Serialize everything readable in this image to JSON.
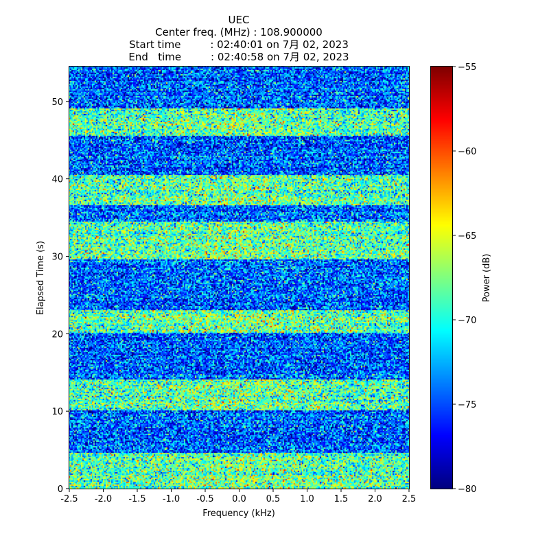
{
  "chart_data": {
    "type": "heatmap",
    "title_lines": [
      "UEC",
      "Center freq. (MHz) : 108.900000",
      "Start time         : 02:40:01 on 7月 02, 2023",
      "End   time         : 02:40:58 on 7月 02, 2023"
    ],
    "xlabel": "Frequency (kHz)",
    "ylabel": "Elapsed Time (s)",
    "xlim": [
      -2.5,
      2.5
    ],
    "ylim": [
      0,
      54.5
    ],
    "x_ticks": [
      -2.5,
      -2.0,
      -1.5,
      -1.0,
      -0.5,
      0.0,
      0.5,
      1.0,
      1.5,
      2.0,
      2.5
    ],
    "x_tick_labels": [
      "-2.5",
      "-2.0",
      "-1.5",
      "-1.0",
      "-0.5",
      "0.0",
      "0.5",
      "1.0",
      "1.5",
      "2.0",
      "2.5"
    ],
    "y_ticks": [
      0,
      10,
      20,
      30,
      40,
      50
    ],
    "y_tick_labels": [
      "0",
      "10",
      "20",
      "30",
      "40",
      "50"
    ],
    "colorbar": {
      "label": "Power (dB)",
      "range": [
        -80,
        -55
      ],
      "ticks": [
        -80,
        -75,
        -70,
        -65,
        -60,
        -55
      ],
      "tick_labels": [
        "−80",
        "−75",
        "−70",
        "−65",
        "−60",
        "−55"
      ],
      "colormap": "jet"
    },
    "bright_bands_s": [
      [
        0,
        4.5
      ],
      [
        10,
        14
      ],
      [
        20,
        23
      ],
      [
        29.5,
        34.5
      ],
      [
        36.5,
        40.5
      ],
      [
        45.5,
        49
      ]
    ],
    "bright_band_mean_db": -69,
    "background_mean_db": -74.5,
    "noise_std_db": 3.2
  }
}
